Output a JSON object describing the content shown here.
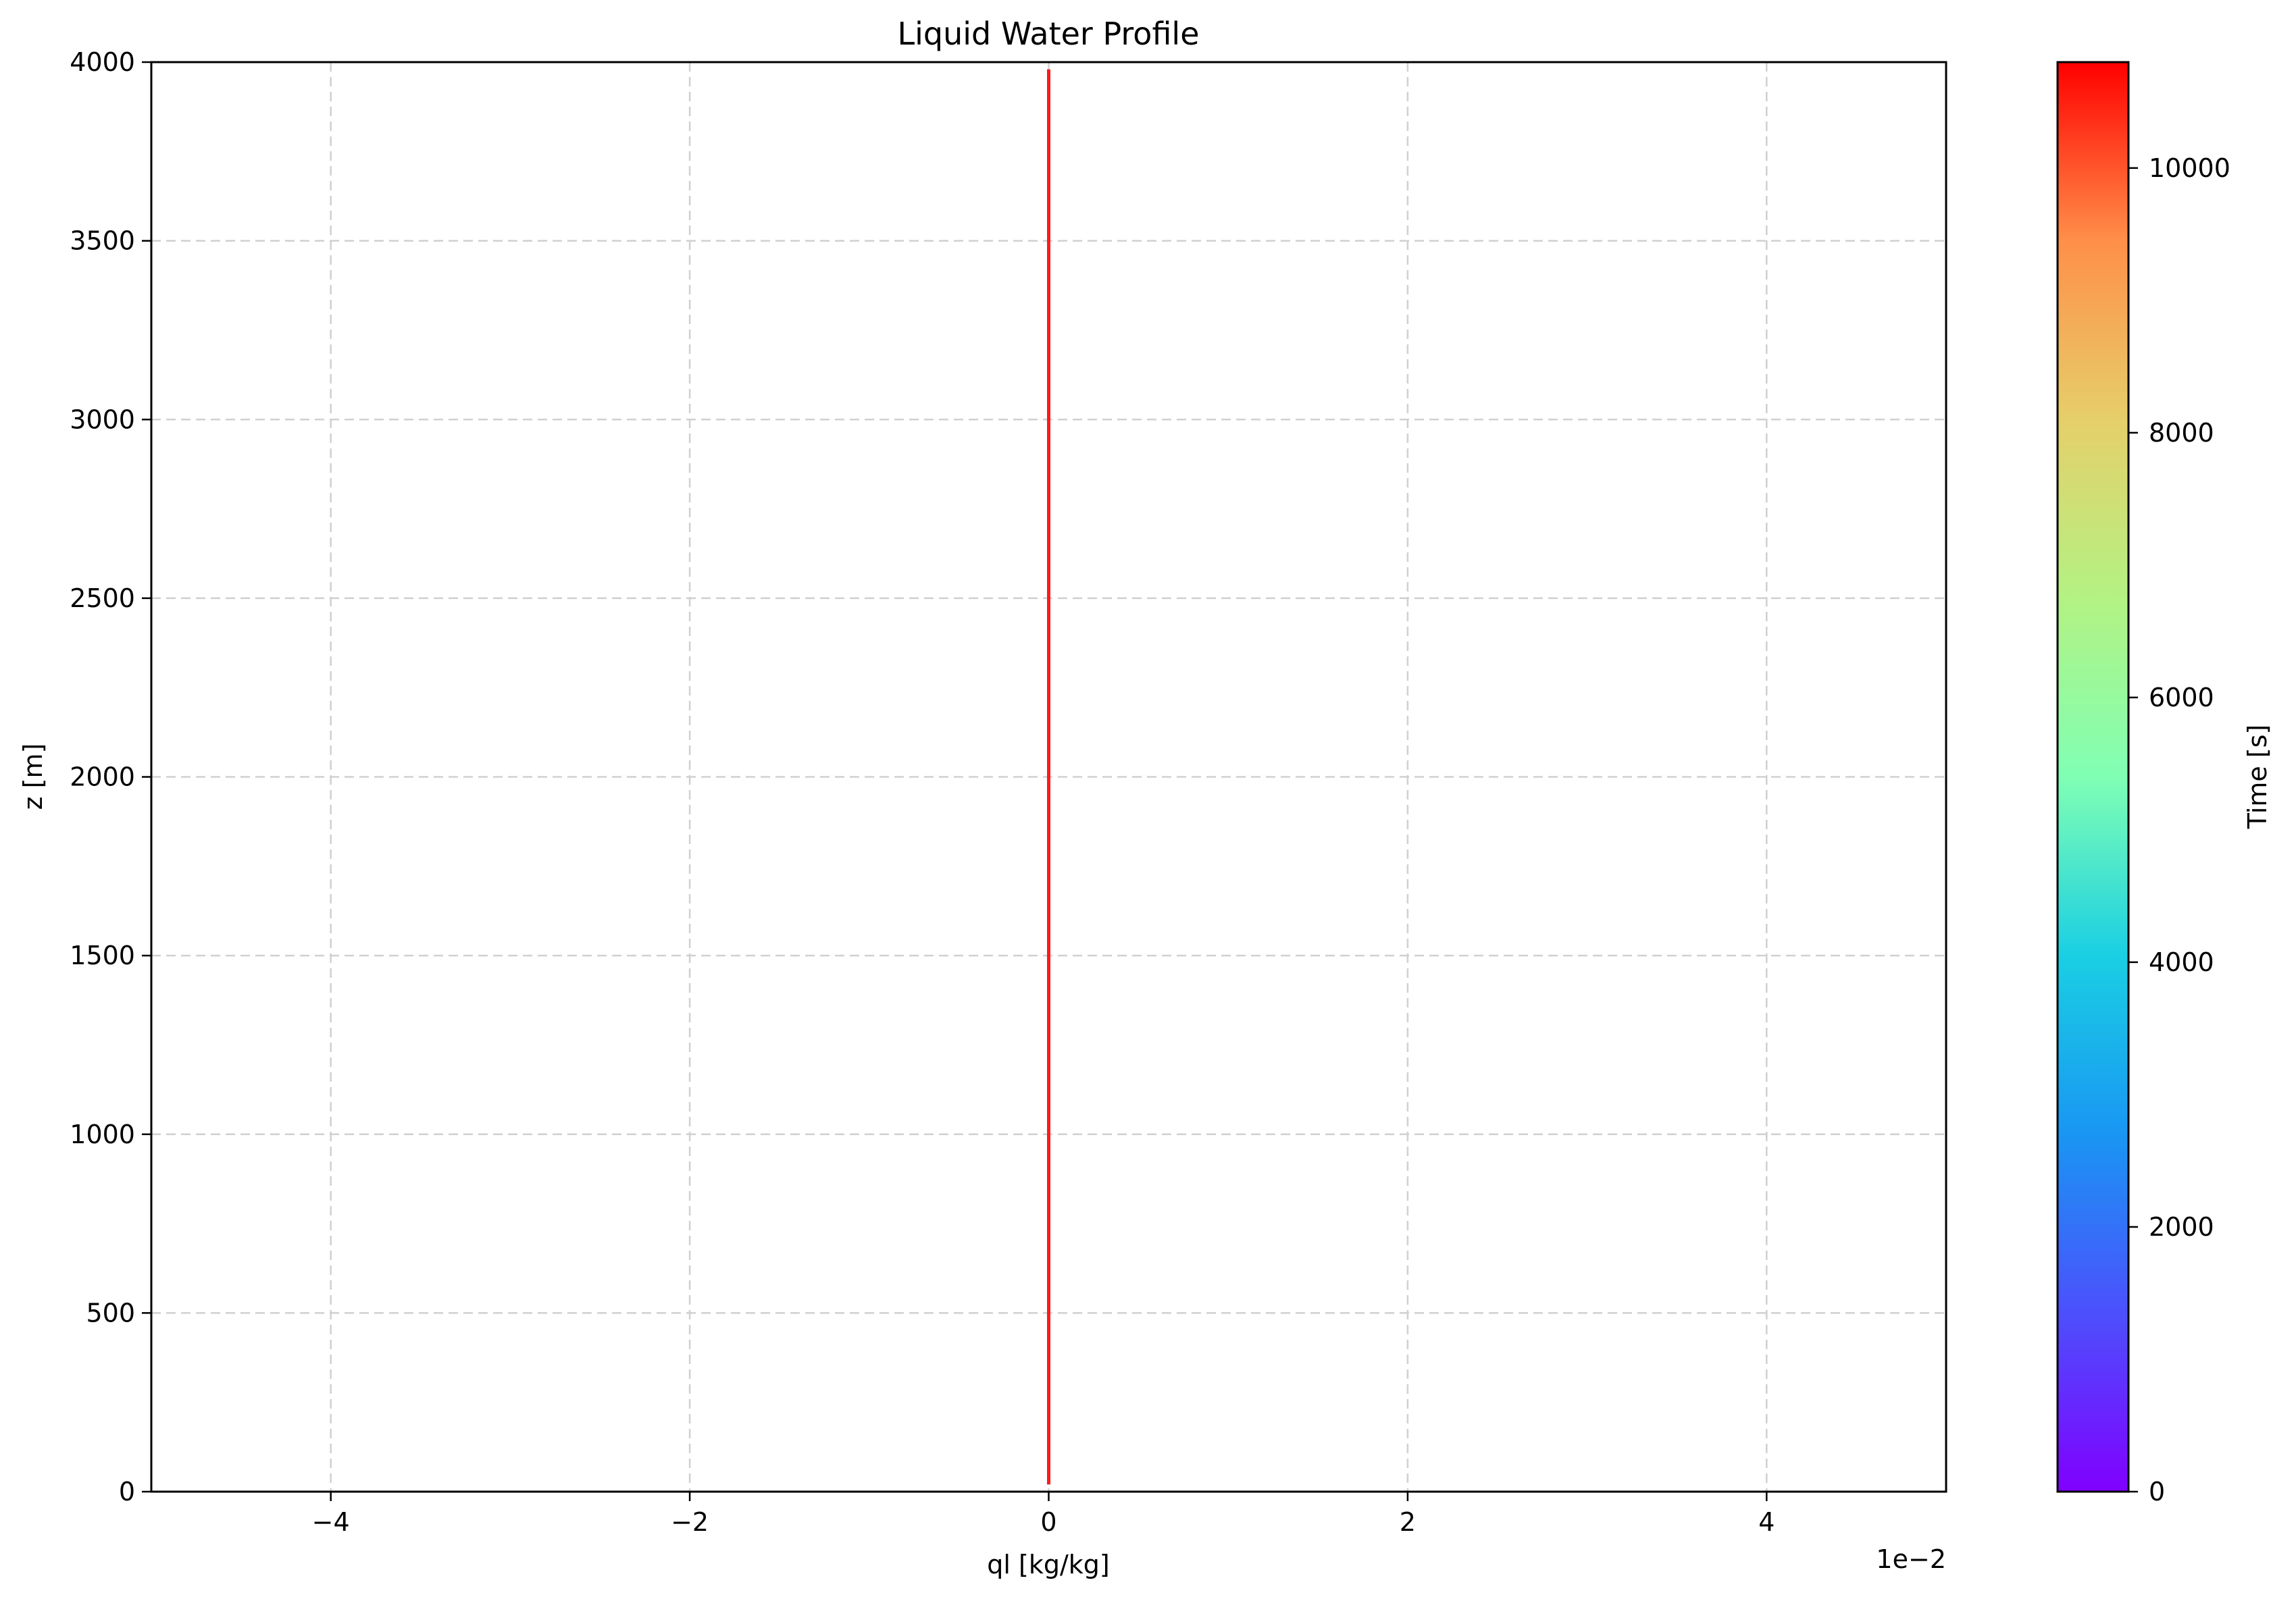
{
  "chart_data": {
    "type": "line",
    "title": "Liquid Water Profile",
    "xlabel": "ql [kg/kg]",
    "ylabel": "z [m]",
    "x_offset_label": "1e−2",
    "xlim": [
      -0.05,
      0.05
    ],
    "ylim": [
      0,
      4000
    ],
    "xticks": [
      -0.04,
      -0.02,
      0,
      0.02,
      0.04
    ],
    "xtick_labels": [
      "−4",
      "−2",
      "0",
      "2",
      "4"
    ],
    "yticks": [
      0,
      500,
      1000,
      1500,
      2000,
      2500,
      3000,
      3500,
      4000
    ],
    "ytick_labels": [
      "0",
      "500",
      "1000",
      "1500",
      "2000",
      "2500",
      "3000",
      "3500",
      "4000"
    ],
    "grid": true,
    "series": [
      {
        "color": "#ff1a1a",
        "x": [
          0,
          0
        ],
        "y": [
          20,
          3980
        ]
      }
    ],
    "colorbar": {
      "label": "Time [s]",
      "colormap": "rainbow",
      "range": [
        0,
        10800
      ],
      "ticks": [
        0,
        2000,
        4000,
        6000,
        8000,
        10000
      ],
      "tick_labels": [
        "0",
        "2000",
        "4000",
        "6000",
        "8000",
        "10000"
      ]
    }
  }
}
